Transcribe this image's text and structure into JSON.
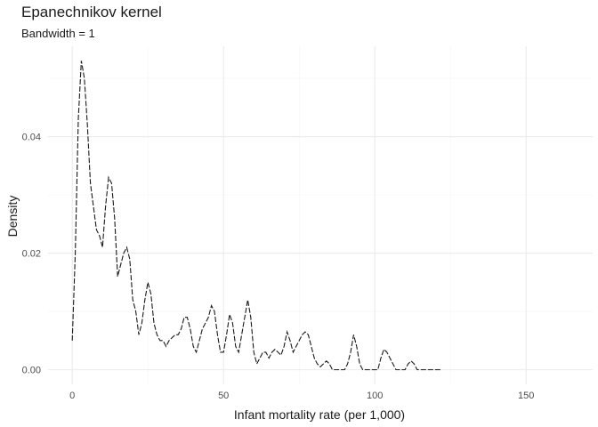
{
  "chart_data": {
    "type": "line",
    "title": "Epanechnikov kernel",
    "subtitle": "Bandwidth = 1",
    "xlabel": "Infant mortality rate (per 1,000)",
    "ylabel": "Density",
    "xlim": [
      -8,
      172
    ],
    "ylim": [
      -0.0025,
      0.0555
    ],
    "x_ticks": [
      0,
      50,
      100,
      150
    ],
    "x_tick_labels": [
      "0",
      "50",
      "100",
      "150"
    ],
    "y_ticks": [
      0,
      0.02,
      0.04
    ],
    "y_tick_labels": [
      "0.00",
      "0.02",
      "0.04"
    ],
    "grid": true,
    "colors": {
      "line": "#1a1a1a",
      "major_grid": "#ebebeb",
      "minor_grid": "#f5f5f5"
    },
    "series": [
      {
        "x": [
          0,
          1,
          2,
          3,
          4,
          5,
          6,
          7,
          8,
          9,
          10,
          11,
          12,
          13,
          14,
          15,
          16,
          17,
          18,
          19,
          20,
          21,
          22,
          23,
          24,
          25,
          26,
          27,
          28,
          29,
          30,
          31,
          32,
          33,
          34,
          35,
          36,
          37,
          38,
          39,
          40,
          41,
          42,
          43,
          44,
          45,
          46,
          47,
          48,
          49,
          50,
          51,
          52,
          53,
          54,
          55,
          56,
          57,
          58,
          59,
          60,
          61,
          62,
          63,
          64,
          65,
          66,
          67,
          68,
          69,
          70,
          71,
          72,
          73,
          74,
          75,
          76,
          77,
          78,
          79,
          80,
          81,
          82,
          83,
          84,
          85,
          86,
          87,
          88,
          89,
          90,
          91,
          92,
          93,
          94,
          95,
          96,
          97,
          98,
          99,
          100,
          101,
          102,
          103,
          104,
          105,
          106,
          107,
          108,
          109,
          110,
          111,
          112,
          113,
          114,
          115,
          116,
          117,
          118,
          119,
          120,
          121,
          122
        ],
        "y": [
          0.005,
          0.02,
          0.043,
          0.053,
          0.05,
          0.042,
          0.032,
          0.028,
          0.024,
          0.023,
          0.021,
          0.028,
          0.033,
          0.032,
          0.026,
          0.016,
          0.018,
          0.02,
          0.021,
          0.019,
          0.012,
          0.01,
          0.006,
          0.008,
          0.012,
          0.015,
          0.013,
          0.008,
          0.006,
          0.005,
          0.005,
          0.004,
          0.005,
          0.0055,
          0.006,
          0.006,
          0.007,
          0.009,
          0.009,
          0.007,
          0.004,
          0.003,
          0.005,
          0.007,
          0.008,
          0.009,
          0.011,
          0.01,
          0.006,
          0.003,
          0.003,
          0.006,
          0.0095,
          0.008,
          0.004,
          0.003,
          0.006,
          0.009,
          0.012,
          0.009,
          0.003,
          0.001,
          0.002,
          0.003,
          0.003,
          0.002,
          0.003,
          0.0035,
          0.003,
          0.0025,
          0.004,
          0.0065,
          0.005,
          0.003,
          0.004,
          0.005,
          0.006,
          0.0065,
          0.006,
          0.004,
          0.002,
          0.001,
          0.0005,
          0.001,
          0.0015,
          0.001,
          0,
          0,
          0,
          0,
          0,
          0.001,
          0.003,
          0.006,
          0.004,
          0.001,
          0,
          0,
          0,
          0,
          0,
          0,
          0.002,
          0.0035,
          0.003,
          0.002,
          0.001,
          0,
          0,
          0,
          0,
          0.001,
          0.0015,
          0.001,
          0,
          0,
          0,
          0,
          0,
          0,
          0,
          0,
          0
        ]
      }
    ]
  }
}
